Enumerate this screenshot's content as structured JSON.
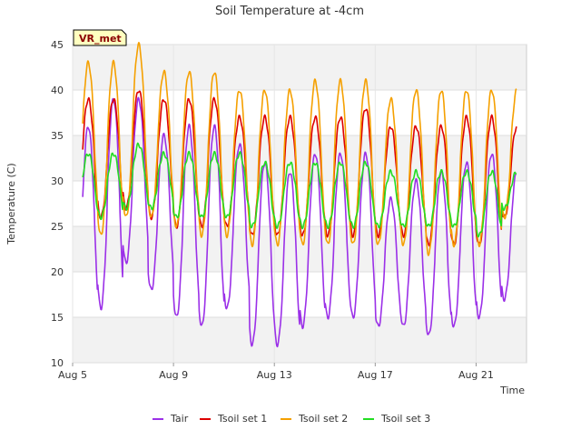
{
  "chart_data": {
    "type": "line",
    "title": "Soil Temperature at -4cm",
    "xlabel": "Time",
    "ylabel": "Temperature (C)",
    "site_label": "VR_met",
    "xlim": [
      0.0,
      18.0
    ],
    "ylim": [
      10,
      45
    ],
    "yticks": [
      10,
      15,
      20,
      25,
      30,
      35,
      40,
      45
    ],
    "xticks": [
      {
        "value": 0.0,
        "label": "Aug 5"
      },
      {
        "value": 4.0,
        "label": "Aug 9"
      },
      {
        "value": 8.0,
        "label": "Aug 13"
      },
      {
        "value": 12.0,
        "label": "Aug 17"
      },
      {
        "value": 16.0,
        "label": "Aug 21"
      }
    ],
    "grid": true,
    "legend_position": "bottom",
    "daily_x": [
      0.0,
      1.0,
      2.0,
      3.0,
      4.0,
      5.0,
      6.0,
      7.0,
      8.0,
      9.0,
      10.0,
      11.0,
      12.0,
      13.0,
      14.0,
      15.0,
      16.0,
      17.0
    ],
    "series": [
      {
        "name": "Tair",
        "color": "#9b30e8",
        "daily_min": [
          15,
          16,
          21,
          18,
          15,
          14,
          16,
          12,
          12,
          14,
          15,
          15,
          14,
          14,
          13,
          14,
          15,
          17
        ],
        "daily_max": [
          36,
          39,
          39,
          35,
          36,
          36,
          34,
          32,
          31,
          33,
          33,
          33,
          28,
          30,
          31,
          32,
          33,
          31
        ]
      },
      {
        "name": "Tsoil set 1",
        "color": "#dd0000",
        "daily_min": [
          25,
          26,
          27,
          26,
          25,
          25,
          25,
          24,
          24,
          24,
          24,
          24,
          24,
          24,
          23,
          23,
          23,
          26
        ],
        "daily_max": [
          39,
          39,
          40,
          39,
          39,
          39,
          37,
          37,
          37,
          37,
          37,
          38,
          36,
          36,
          36,
          37,
          37,
          36
        ]
      },
      {
        "name": "Tsoil set 2",
        "color": "#f5a000",
        "daily_min": [
          25,
          24,
          26,
          26,
          25,
          24,
          24,
          23,
          23,
          23,
          23,
          23,
          23,
          23,
          22,
          23,
          23,
          26
        ],
        "daily_max": [
          43,
          43,
          45,
          42,
          42,
          42,
          40,
          40,
          40,
          41,
          41,
          41,
          39,
          40,
          40,
          40,
          40,
          40
        ]
      },
      {
        "name": "Tsoil set 3",
        "color": "#22dd22",
        "daily_min": [
          26,
          26,
          27,
          27,
          26,
          26,
          26,
          25,
          25,
          25,
          25,
          25,
          25,
          25,
          25,
          25,
          24,
          27
        ],
        "daily_max": [
          33,
          33,
          34,
          33,
          33,
          33,
          33,
          32,
          32,
          32,
          32,
          32,
          31,
          31,
          31,
          31,
          31,
          31
        ]
      }
    ]
  }
}
